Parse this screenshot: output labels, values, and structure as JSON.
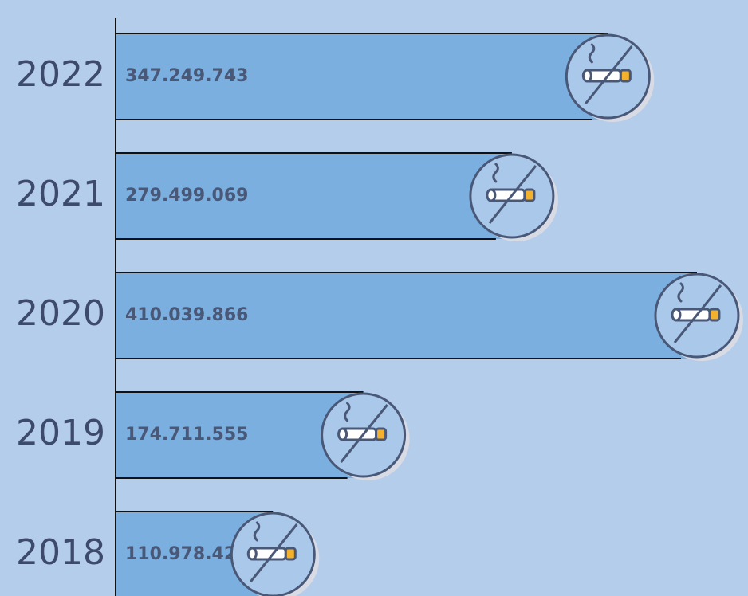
{
  "chart_data": {
    "type": "bar",
    "orientation": "horizontal",
    "categories": [
      "2022",
      "2021",
      "2020",
      "2019",
      "2018"
    ],
    "values": [
      347249743,
      279499069,
      410039866,
      174711555,
      110978429
    ],
    "value_labels": [
      "347.249.743",
      "279.499.069",
      "410.039.866",
      "174.711.555",
      "110.978.429"
    ],
    "color": "#7aafe0",
    "xlim": [
      0,
      450000000
    ]
  }
}
